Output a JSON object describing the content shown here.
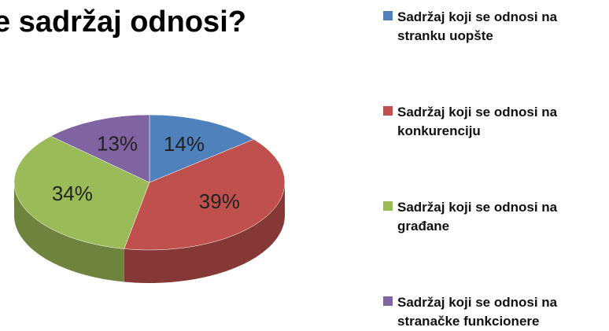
{
  "chart_data": {
    "type": "pie",
    "title": "e sadržaj odnosi?",
    "categories": [
      "Sadržaj koji se odnosi na stranku uopšte",
      "Sadržaj koji se odnosi na konkurenciju",
      "Sadržaj koji se odnosi na građane",
      "Sadržaj koji se odnosi na stranačke funkcionere"
    ],
    "values": [
      14,
      39,
      34,
      13
    ],
    "value_labels": [
      "14%",
      "39%",
      "34%",
      "13%"
    ],
    "colors": [
      "#4f81bd",
      "#c0504d",
      "#9bbb59",
      "#8064a2"
    ],
    "legend": "right"
  }
}
